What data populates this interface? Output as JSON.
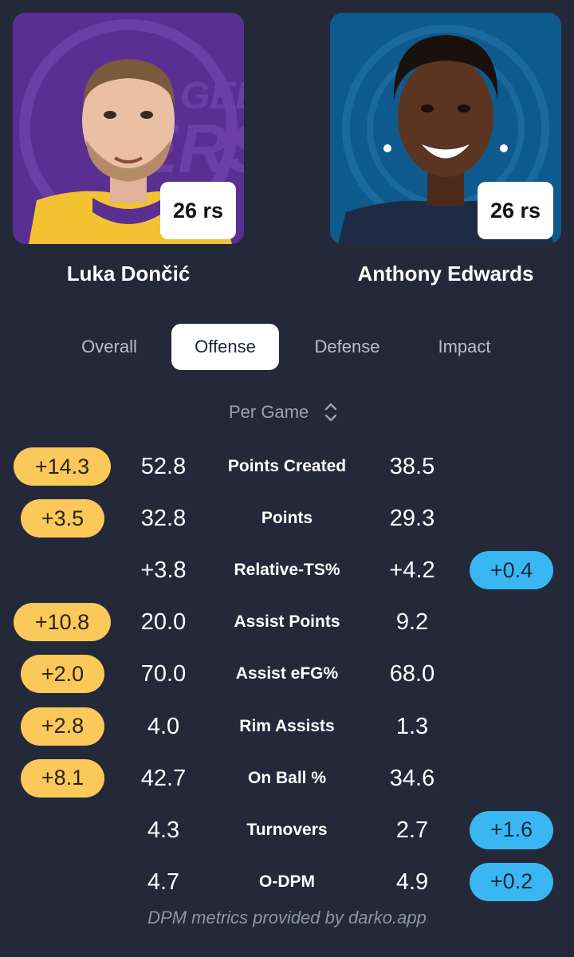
{
  "players": {
    "left": {
      "name": "Luka Dončić",
      "badge": "26 rs"
    },
    "right": {
      "name": "Anthony Edwards",
      "badge": "26 rs"
    }
  },
  "tabs": [
    {
      "label": "Overall",
      "active": false
    },
    {
      "label": "Offense",
      "active": true
    },
    {
      "label": "Defense",
      "active": false
    },
    {
      "label": "Impact",
      "active": false
    }
  ],
  "selector": {
    "label": "Per Game"
  },
  "colors": {
    "advantage_left": "#fbc95a",
    "advantage_right": "#3ab7f2",
    "background": "#232938"
  },
  "rows": [
    {
      "metric": "Points Created",
      "left": "52.8",
      "right": "38.5",
      "diff": "+14.3",
      "side": "left"
    },
    {
      "metric": "Points",
      "left": "32.8",
      "right": "29.3",
      "diff": "+3.5",
      "side": "left"
    },
    {
      "metric": "Relative-TS%",
      "left": "+3.8",
      "right": "+4.2",
      "diff": "+0.4",
      "side": "right"
    },
    {
      "metric": "Assist Points",
      "left": "20.0",
      "right": "9.2",
      "diff": "+10.8",
      "side": "left"
    },
    {
      "metric": "Assist eFG%",
      "left": "70.0",
      "right": "68.0",
      "diff": "+2.0",
      "side": "left"
    },
    {
      "metric": "Rim Assists",
      "left": "4.0",
      "right": "1.3",
      "diff": "+2.8",
      "side": "left"
    },
    {
      "metric": "On Ball %",
      "left": "42.7",
      "right": "34.6",
      "diff": "+8.1",
      "side": "left"
    },
    {
      "metric": "Turnovers",
      "left": "4.3",
      "right": "2.7",
      "diff": "+1.6",
      "side": "right"
    },
    {
      "metric": "O-DPM",
      "left": "4.7",
      "right": "4.9",
      "diff": "+0.2",
      "side": "right"
    }
  ],
  "footer": "DPM metrics provided by darko.app"
}
